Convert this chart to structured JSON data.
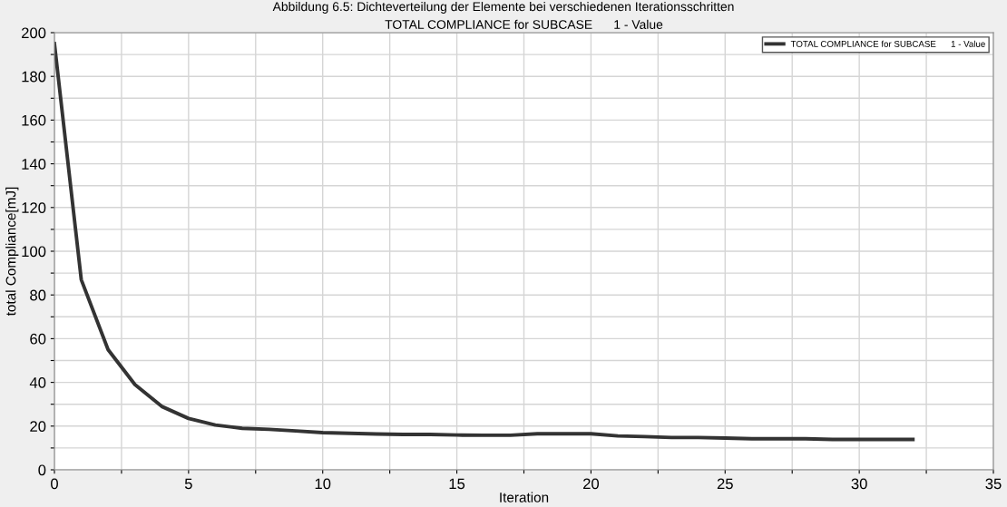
{
  "chart_data": {
    "type": "line",
    "title": "TOTAL COMPLIANCE for SUBCASE      1 - Value",
    "annotations": [
      "Abbildung 6.5: Dichteverteilung der Elemente bei verschiedenen Iterationsschritten"
    ],
    "xlabel": "Iteration",
    "ylabel": "total Compliance[mJ]",
    "x": [
      0,
      1,
      2,
      3,
      4,
      5,
      6,
      7,
      8,
      9,
      10,
      11,
      12,
      13,
      14,
      15,
      16,
      17,
      18,
      19,
      20,
      21,
      22,
      23,
      24,
      25,
      26,
      27,
      28,
      29,
      30,
      31,
      32
    ],
    "series": [
      {
        "name": "TOTAL COMPLIANCE for SUBCASE      1 - Value",
        "color": "#333333",
        "values": [
          195,
          87,
          55,
          39,
          29,
          23.5,
          20.5,
          19,
          18.5,
          17.8,
          17,
          16.7,
          16.4,
          16.2,
          16.2,
          15.9,
          15.8,
          15.8,
          16.5,
          16.5,
          16.5,
          15.5,
          15.2,
          14.8,
          14.8,
          14.5,
          14.2,
          14.2,
          14.2,
          13.9,
          13.9,
          13.9,
          13.9
        ]
      }
    ],
    "xlim": [
      0,
      35
    ],
    "ylim": [
      0,
      200
    ],
    "xticks": [
      0,
      {
        "value": 2.5,
        "label": null
      },
      5,
      {
        "value": 7.5,
        "label": null
      },
      10,
      {
        "value": 12.5,
        "label": null
      },
      15,
      {
        "value": 17.5,
        "label": null
      },
      20,
      {
        "value": 22.5,
        "label": null
      },
      25,
      {
        "value": 27.5,
        "label": null
      },
      30,
      {
        "value": 32.5,
        "label": null
      },
      35
    ],
    "yticks": [
      0,
      {
        "value": 10,
        "label": null
      },
      20,
      {
        "value": 30,
        "label": null
      },
      40,
      {
        "value": 50,
        "label": null
      },
      60,
      {
        "value": 70,
        "label": null
      },
      80,
      {
        "value": 90,
        "label": null
      },
      100,
      {
        "value": 110,
        "label": null
      },
      120,
      {
        "value": 130,
        "label": null
      },
      140,
      {
        "value": 150,
        "label": null
      },
      160,
      {
        "value": 170,
        "label": null
      },
      180,
      {
        "value": 190,
        "label": null
      },
      200
    ],
    "grid": true,
    "legend": "top right",
    "line_style": "solid"
  }
}
